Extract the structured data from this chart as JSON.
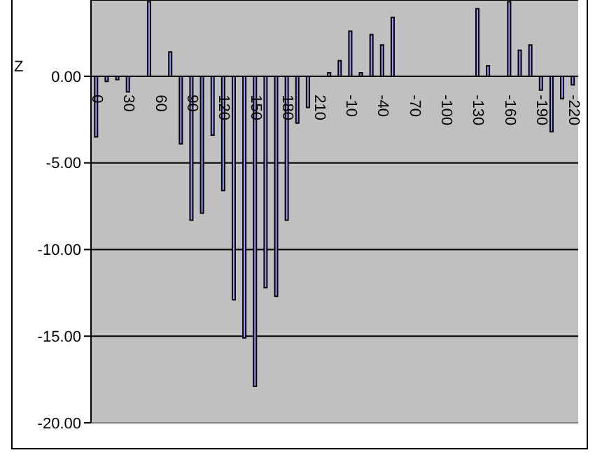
{
  "chart_data": {
    "type": "bar",
    "ylabel": "Z",
    "categories": [
      "0",
      null,
      null,
      "30",
      null,
      null,
      "60",
      null,
      null,
      "90",
      null,
      null,
      "120",
      null,
      null,
      "150",
      null,
      null,
      "180",
      null,
      null,
      "210",
      null,
      null,
      "-10",
      null,
      null,
      "-40",
      null,
      null,
      "-70",
      null,
      null,
      "-100",
      null,
      null,
      "-130",
      null,
      null,
      "-160",
      null,
      null,
      "-190",
      null,
      null,
      "-220"
    ],
    "values": [
      -3.5,
      -0.3,
      -0.2,
      -0.9,
      null,
      4.3,
      null,
      1.4,
      -3.9,
      -8.3,
      -7.9,
      -3.4,
      -6.6,
      -12.9,
      -15.1,
      -17.9,
      -12.2,
      -12.7,
      -8.3,
      -2.7,
      -1.8,
      null,
      0.2,
      0.9,
      2.6,
      0.2,
      2.4,
      1.8,
      3.4,
      null,
      null,
      null,
      null,
      null,
      null,
      null,
      3.9,
      0.6,
      null,
      4.3,
      1.5,
      1.8,
      -0.8,
      -3.2,
      -1.3,
      -0.5
    ],
    "color": "#9999ff",
    "ylim": [
      -20,
      4.4
    ],
    "yticks": [
      {
        "value": -20,
        "label": "-20.00"
      },
      {
        "value": -15,
        "label": "-15.00"
      },
      {
        "value": -10,
        "label": "-10.00"
      },
      {
        "value": -5,
        "label": "-5.00"
      },
      {
        "value": 0,
        "label": "0.00"
      }
    ],
    "grid": "y",
    "legend": false
  }
}
